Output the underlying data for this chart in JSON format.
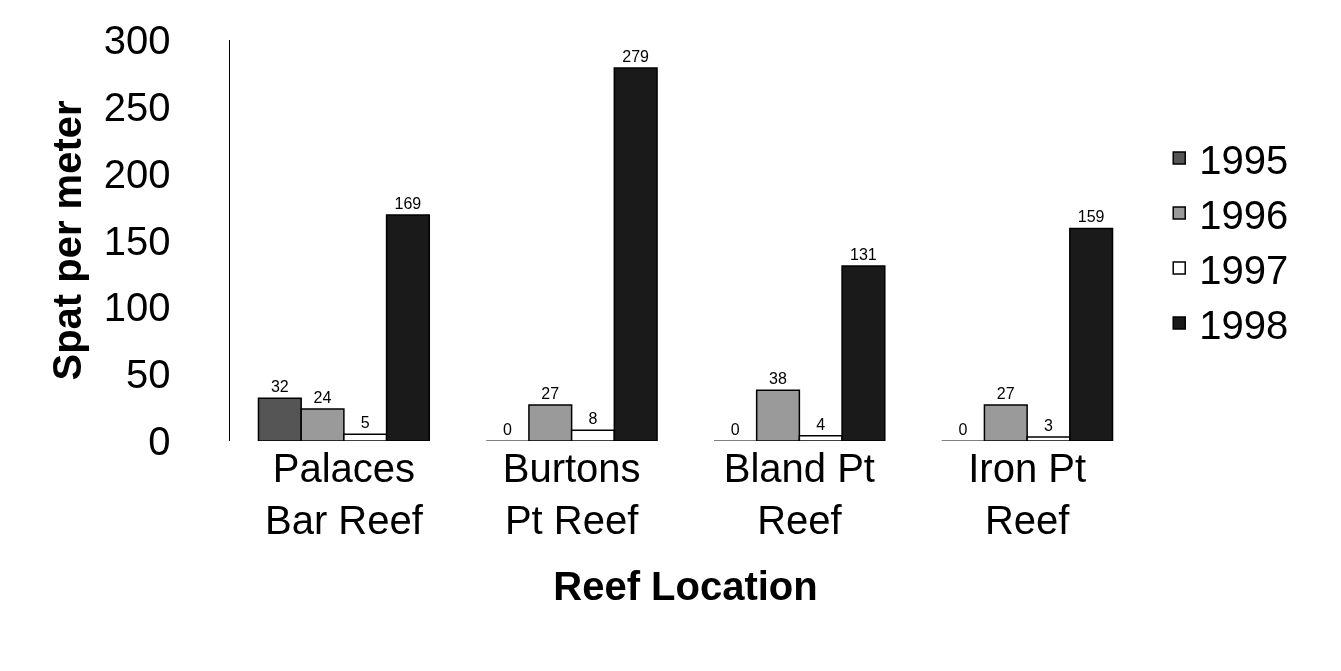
{
  "chart_data": {
    "type": "bar",
    "xlabel": "Reef Location",
    "ylabel": "Spat per meter",
    "categories": [
      "Palaces Bar Reef",
      "Burtons Pt Reef",
      "Bland Pt Reef",
      "Iron Pt Reef"
    ],
    "series": [
      {
        "name": "1995",
        "color": "#555555",
        "values": [
          32,
          0,
          0,
          0
        ]
      },
      {
        "name": "1996",
        "color": "#9a9a9a",
        "values": [
          24,
          27,
          38,
          27
        ]
      },
      {
        "name": "1997",
        "color": "#ffffff",
        "values": [
          5,
          8,
          4,
          3
        ]
      },
      {
        "name": "1998",
        "color": "#1a1a1a",
        "values": [
          169,
          279,
          131,
          159
        ]
      }
    ],
    "ylim": [
      0,
      300
    ],
    "yticks": [
      0,
      50,
      100,
      150,
      200,
      250,
      300
    ],
    "grid": false,
    "legend": "right",
    "data_labels": true
  }
}
